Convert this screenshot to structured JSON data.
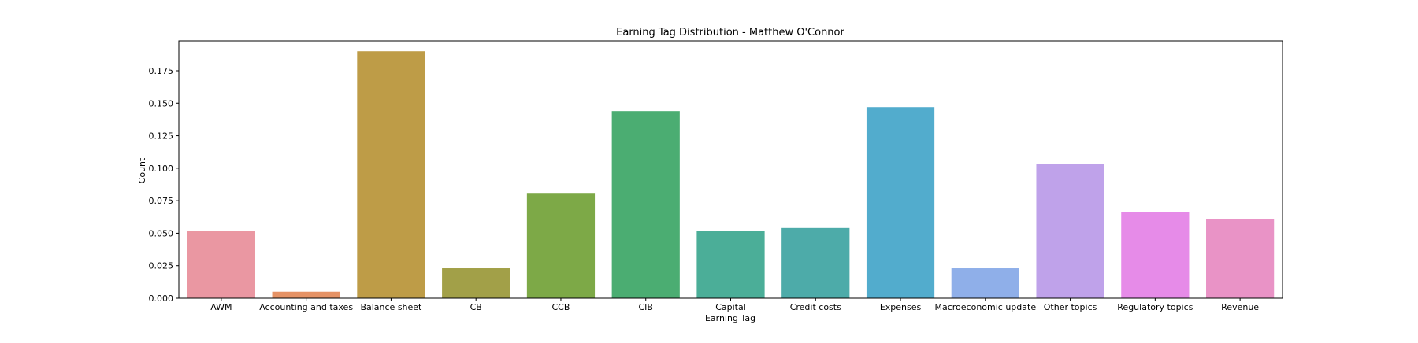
{
  "chart_data": {
    "type": "bar",
    "title": "Earning Tag Distribution - Matthew O'Connor",
    "xlabel": "Earning Tag",
    "ylabel": "Count",
    "ylim": [
      0,
      0.198
    ],
    "yticks": [
      "0.000",
      "0.025",
      "0.050",
      "0.075",
      "0.100",
      "0.125",
      "0.150",
      "0.175"
    ],
    "grid": false,
    "categories": [
      "AWM",
      "Accounting and taxes",
      "Balance sheet",
      "CB",
      "CCB",
      "CIB",
      "Capital",
      "Credit costs",
      "Expenses",
      "Macroeconomic update",
      "Other topics",
      "Regulatory topics",
      "Revenue"
    ],
    "values": [
      0.052,
      0.005,
      0.19,
      0.023,
      0.081,
      0.144,
      0.052,
      0.054,
      0.147,
      0.023,
      0.103,
      0.066,
      0.061
    ],
    "colors": [
      "#EA97A2",
      "#E59265",
      "#BE9C47",
      "#A2A048",
      "#7DA947",
      "#4BAD72",
      "#4BAE98",
      "#4DABA9",
      "#52ACCD",
      "#8FAFE9",
      "#BFA2EA",
      "#E68BE8",
      "#E993C6"
    ]
  }
}
